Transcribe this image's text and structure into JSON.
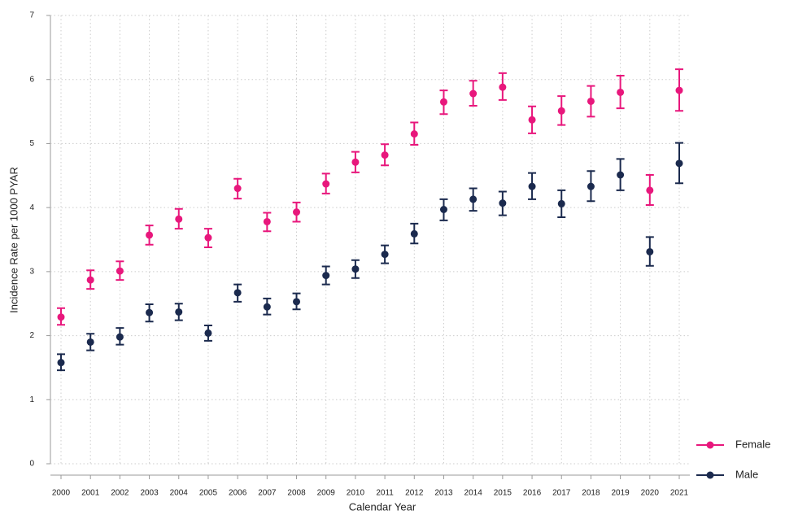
{
  "chart_data": {
    "type": "line",
    "x_label": "Calendar Year",
    "y_label": "Incidence Rate per 1000 PYAR",
    "categories": [
      "2000",
      "2001",
      "2002",
      "2003",
      "2004",
      "2005",
      "2006",
      "2007",
      "2008",
      "2009",
      "2010",
      "2011",
      "2012",
      "2013",
      "2014",
      "2015",
      "2016",
      "2017",
      "2018",
      "2019",
      "2020",
      "2021"
    ],
    "series": [
      {
        "name": "Female",
        "color": "#e8177c",
        "values": [
          2.29,
          2.87,
          3.01,
          3.57,
          3.82,
          3.53,
          4.3,
          3.78,
          3.93,
          4.37,
          4.71,
          4.82,
          5.15,
          5.65,
          5.78,
          5.88,
          5.37,
          5.51,
          5.66,
          5.8,
          4.27,
          5.83
        ],
        "lower": [
          2.17,
          2.73,
          2.87,
          3.42,
          3.67,
          3.38,
          4.14,
          3.63,
          3.78,
          4.22,
          4.55,
          4.66,
          4.98,
          5.46,
          5.59,
          5.68,
          5.16,
          5.29,
          5.42,
          5.55,
          4.04,
          5.51
        ],
        "upper": [
          2.43,
          3.02,
          3.16,
          3.72,
          3.98,
          3.67,
          4.45,
          3.92,
          4.08,
          4.53,
          4.87,
          4.99,
          5.33,
          5.83,
          5.98,
          6.1,
          5.58,
          5.74,
          5.9,
          6.06,
          4.51,
          6.16
        ]
      },
      {
        "name": "Male",
        "color": "#1b2a4e",
        "values": [
          1.58,
          1.9,
          1.98,
          2.36,
          2.37,
          2.04,
          2.67,
          2.45,
          2.53,
          2.94,
          3.04,
          3.27,
          3.59,
          3.97,
          4.13,
          4.07,
          4.33,
          4.06,
          4.33,
          4.51,
          3.31,
          4.69
        ],
        "lower": [
          1.46,
          1.77,
          1.86,
          2.22,
          2.24,
          1.92,
          2.53,
          2.33,
          2.41,
          2.8,
          2.9,
          3.13,
          3.44,
          3.8,
          3.95,
          3.88,
          4.13,
          3.85,
          4.1,
          4.27,
          3.09,
          4.38
        ],
        "upper": [
          1.71,
          2.03,
          2.12,
          2.49,
          2.5,
          2.16,
          2.8,
          2.58,
          2.66,
          3.08,
          3.18,
          3.41,
          3.75,
          4.13,
          4.3,
          4.25,
          4.54,
          4.27,
          4.57,
          4.76,
          3.54,
          5.01
        ]
      }
    ],
    "ylim": [
      0,
      7
    ],
    "yticks": [
      0,
      1,
      2,
      3,
      4,
      5,
      6,
      7
    ],
    "grid": true,
    "legend": "right"
  }
}
